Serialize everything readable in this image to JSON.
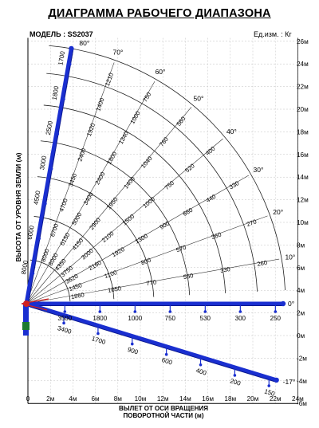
{
  "title": "ДИАГРАММА РАБОЧЕГО ДИАПАЗОНА",
  "model_label": "МОДЕЛЬ : SS2037",
  "units_label": "Ед.изм. : Кг",
  "y_axis_title": "ВЫСОТА ОТ УРОВНЯ ЗЕМЛИ (м)",
  "x_axis_title_line1": "ВЫЛЕТ ОТ ОСИ ВРАЩЕНИЯ",
  "x_axis_title_line2": "ПОВОРОТНОЙ ЧАСТИ (м)",
  "colors": {
    "boom": "#1a2fd0",
    "arc": "#222222",
    "grid": "#c0c0c0",
    "ray": "#333333",
    "pivot": "#d02020"
  },
  "axes": {
    "x_ticks": [
      "0",
      "2м",
      "4м",
      "6м",
      "8м",
      "10м",
      "12м",
      "14м",
      "16м",
      "18м",
      "20м",
      "22м",
      "24м"
    ],
    "y_ticks": [
      "26м",
      "24м",
      "22м",
      "20м",
      "18м",
      "16м",
      "14м",
      "12м",
      "10м",
      "8м",
      "6м",
      "4м",
      "2м",
      "0м",
      "-2м",
      "-4м",
      "-6м"
    ],
    "x_range": [
      0,
      24
    ],
    "y_range": [
      -6,
      26
    ],
    "grid": true
  },
  "angle_labels": [
    "80°",
    "70°",
    "60°",
    "50°",
    "40°",
    "30°",
    "20°",
    "10°",
    "0°",
    "-17°"
  ],
  "boom_80_loads": [
    "1700",
    "1800",
    "2500",
    "3000",
    "4500",
    "6000",
    "8000"
  ],
  "ray_70_loads": [
    "1210",
    "1400",
    "1920",
    "2400",
    "3450",
    "4700",
    "6700",
    "8000"
  ],
  "ray_60_loads": [
    "750",
    "1000",
    "1340",
    "1800",
    "2400",
    "3400",
    "5000",
    "6150",
    "8000"
  ],
  "ray_50_loads": [
    "560",
    "760",
    "1040",
    "1400",
    "1950",
    "2900",
    "4150",
    "4350"
  ],
  "ray_40_loads": [
    "400",
    "520",
    "750",
    "1000",
    "1500",
    "2100",
    "3000",
    "3750"
  ],
  "ray_30_loads": [
    "330",
    "440",
    "660",
    "900",
    "1300",
    "1920",
    "2160",
    "3620"
  ],
  "ray_20_loads": [
    "270",
    "360",
    "570",
    "800",
    "1100",
    "1450"
  ],
  "ray_10_loads": [
    "260",
    "330",
    "550",
    "770",
    "1050",
    "1860"
  ],
  "boom_0_loads": [
    "250",
    "300",
    "530",
    "750",
    "1000",
    "1800",
    "3500"
  ],
  "boom_minus17_loads": [
    "150",
    "200",
    "400",
    "600",
    "900",
    "1700",
    "3400"
  ]
}
